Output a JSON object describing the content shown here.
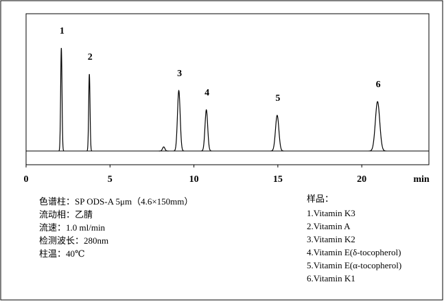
{
  "chart_data": {
    "type": "chromatogram",
    "x_label": "min",
    "x": [
      2.1,
      3.77,
      8.2,
      9.1,
      10.74,
      14.96,
      20.94
    ],
    "values": [
      75,
      56,
      3,
      44,
      30,
      26,
      36
    ],
    "widths": [
      0.04,
      0.04,
      0.07,
      0.08,
      0.08,
      0.1,
      0.13
    ],
    "labels": [
      "1",
      "2",
      null,
      "3",
      "4",
      "5",
      "6"
    ],
    "color": "#000000",
    "xlim": [
      0,
      24
    ],
    "xticks": [
      0,
      5,
      10,
      15,
      20
    ],
    "ylim": [
      -10,
      100
    ]
  },
  "notes": {
    "conditions": [
      "色谱柱：SP ODS-A 5μm（4.6×150mm）",
      "流动相：乙腈",
      "流速：1.0 ml/min",
      "检测波长：280nm",
      "柱温：40℃"
    ],
    "samples_title": "样品：",
    "samples": [
      "1.Vitamin K3",
      "2.Vitamin A",
      "3.Vitamin K2",
      "4.Vitamin E(δ-tocopherol)",
      "5.Vitamin E(α-tocopherol)",
      "6.Vitamin K1"
    ]
  }
}
